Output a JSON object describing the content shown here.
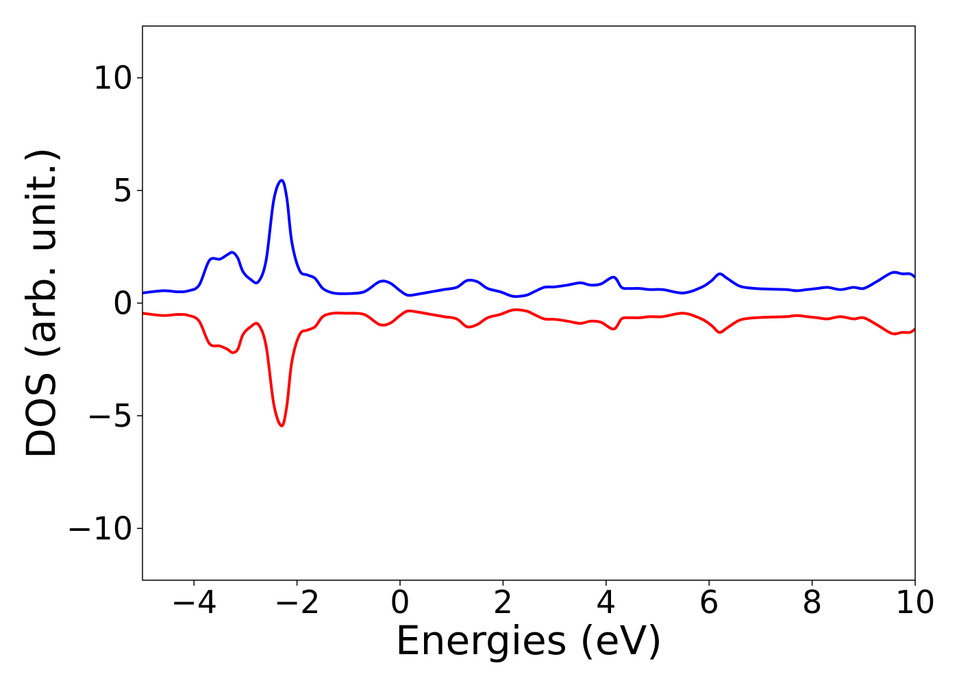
{
  "chart_data": {
    "type": "line",
    "title": "",
    "xlabel": "Energies (eV)",
    "ylabel": "DOS (arb. unit.)",
    "xlim": [
      -5,
      10
    ],
    "ylim": [
      -12.3,
      12.3
    ],
    "xticks": [
      -4,
      -2,
      0,
      2,
      4,
      6,
      8,
      10
    ],
    "xtick_labels": [
      "−4",
      "−2",
      "0",
      "2",
      "4",
      "6",
      "8",
      "10"
    ],
    "yticks": [
      -10,
      -5,
      0,
      5,
      10
    ],
    "ytick_labels": [
      "−10",
      "−5",
      "0",
      "5",
      "10"
    ],
    "grid": false,
    "legend": "none",
    "x": [
      -5.0,
      -4.6,
      -4.3,
      -4.1,
      -3.9,
      -3.7,
      -3.5,
      -3.35,
      -3.25,
      -3.15,
      -3.05,
      -2.9,
      -2.75,
      -2.6,
      -2.45,
      -2.3,
      -2.2,
      -2.1,
      -1.95,
      -1.8,
      -1.65,
      -1.5,
      -1.3,
      -1.05,
      -0.7,
      -0.4,
      -0.2,
      0.0,
      0.15,
      0.35,
      0.6,
      0.85,
      1.1,
      1.3,
      1.5,
      1.7,
      1.95,
      2.2,
      2.45,
      2.6,
      2.8,
      3.0,
      3.25,
      3.5,
      3.7,
      3.9,
      4.15,
      4.3,
      4.45,
      4.65,
      4.85,
      5.1,
      5.5,
      5.85,
      6.05,
      6.2,
      6.35,
      6.6,
      6.9,
      7.2,
      7.5,
      7.7,
      7.9,
      8.1,
      8.3,
      8.55,
      8.8,
      9.0,
      9.25,
      9.55,
      9.75,
      9.9,
      10.0
    ],
    "series": [
      {
        "color": "#0000ff",
        "values": [
          0.45,
          0.55,
          0.5,
          0.55,
          0.8,
          1.9,
          1.95,
          2.15,
          2.25,
          2.0,
          1.4,
          1.05,
          0.95,
          1.9,
          4.6,
          5.45,
          4.7,
          2.7,
          1.45,
          1.25,
          1.1,
          0.65,
          0.45,
          0.42,
          0.5,
          0.95,
          0.9,
          0.55,
          0.35,
          0.4,
          0.5,
          0.6,
          0.7,
          1.0,
          0.95,
          0.65,
          0.5,
          0.3,
          0.35,
          0.5,
          0.7,
          0.72,
          0.8,
          0.9,
          0.8,
          0.85,
          1.15,
          0.7,
          0.65,
          0.65,
          0.6,
          0.6,
          0.45,
          0.7,
          1.0,
          1.3,
          1.1,
          0.75,
          0.65,
          0.62,
          0.6,
          0.55,
          0.6,
          0.65,
          0.7,
          0.6,
          0.7,
          0.65,
          0.95,
          1.35,
          1.3,
          1.3,
          1.15
        ]
      },
      {
        "color": "#ff0000",
        "values": [
          -0.45,
          -0.55,
          -0.5,
          -0.55,
          -0.8,
          -1.8,
          -1.9,
          -2.05,
          -2.2,
          -2.05,
          -1.4,
          -1.05,
          -0.95,
          -1.9,
          -4.5,
          -5.45,
          -4.6,
          -2.6,
          -1.4,
          -1.2,
          -1.05,
          -0.6,
          -0.45,
          -0.45,
          -0.5,
          -0.95,
          -0.9,
          -0.55,
          -0.35,
          -0.4,
          -0.5,
          -0.6,
          -0.7,
          -1.05,
          -0.95,
          -0.65,
          -0.5,
          -0.3,
          -0.35,
          -0.5,
          -0.7,
          -0.72,
          -0.8,
          -0.9,
          -0.8,
          -0.85,
          -1.15,
          -0.7,
          -0.65,
          -0.65,
          -0.6,
          -0.6,
          -0.45,
          -0.7,
          -1.0,
          -1.3,
          -1.1,
          -0.75,
          -0.65,
          -0.62,
          -0.6,
          -0.55,
          -0.6,
          -0.65,
          -0.7,
          -0.6,
          -0.7,
          -0.65,
          -0.95,
          -1.35,
          -1.3,
          -1.3,
          -1.15
        ]
      }
    ]
  }
}
